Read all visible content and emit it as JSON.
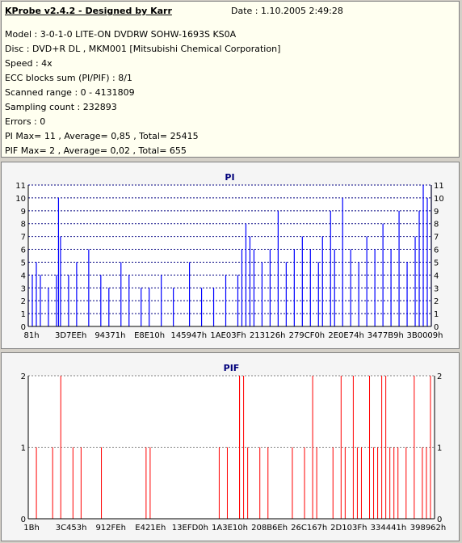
{
  "info": {
    "title": "KProbe v2.4.2 - Designed by Karr",
    "date": "Date : 1.10.2005 2:49:28",
    "lines": [
      "Model : 3-0-1-0 LITE-ON DVDRW SOHW-1693S KS0A",
      "Disc : DVD+R DL , MKM001 [Mitsubishi Chemical Corporation]",
      "Speed : 4x",
      "ECC blocks sum (PI/PIF) : 8/1",
      "Scanned range : 0 - 4131809",
      "Sampling count : 232893",
      "Errors : 0",
      "PI Max= 11 , Average= 0,85 , Total= 25415",
      "PIF Max= 2 , Average= 0,02 , Total= 655"
    ]
  },
  "chart_data": [
    {
      "type": "bar",
      "title": "PI",
      "ylim": [
        0,
        11
      ],
      "yticks": [
        0,
        1,
        2,
        3,
        4,
        5,
        6,
        7,
        8,
        9,
        10,
        11
      ],
      "xtick_labels": [
        "81h",
        "3D7EEh",
        "94371h",
        "E8E10h",
        "145947h",
        "1AE03Fh",
        "213126h",
        "279CF0h",
        "2E0E74h",
        "3477B9h",
        "3B0009h"
      ],
      "grid": true,
      "colors": {
        "bars": "#0000ff",
        "grid": "#000080",
        "background": "#ffffff"
      },
      "series": [
        {
          "x_positions": [
            0.0,
            0.01,
            0.02,
            0.03,
            0.05,
            0.07,
            0.075,
            0.08,
            0.1,
            0.12,
            0.15,
            0.18,
            0.2,
            0.23,
            0.25,
            0.28,
            0.3,
            0.33,
            0.36,
            0.4,
            0.43,
            0.46,
            0.49,
            0.52,
            0.53,
            0.54,
            0.55,
            0.56,
            0.58,
            0.6,
            0.62,
            0.64,
            0.66,
            0.68,
            0.7,
            0.72,
            0.73,
            0.75,
            0.76,
            0.78,
            0.8,
            0.82,
            0.84,
            0.86,
            0.88,
            0.9,
            0.92,
            0.94,
            0.96,
            0.97,
            0.98,
            0.99,
            1.0
          ],
          "values": [
            6,
            4,
            5,
            4,
            3,
            4,
            10,
            7,
            4,
            5,
            6,
            4,
            3,
            5,
            4,
            3,
            3,
            4,
            3,
            5,
            3,
            3,
            4,
            4,
            6,
            8,
            7,
            6,
            5,
            6,
            9,
            5,
            6,
            7,
            6,
            5,
            7,
            9,
            6,
            10,
            6,
            5,
            7,
            6,
            8,
            6,
            9,
            5,
            7,
            9,
            11,
            10,
            11
          ]
        }
      ]
    },
    {
      "type": "bar",
      "title": "PIF",
      "ylim": [
        0,
        2
      ],
      "yticks": [
        0,
        1,
        2
      ],
      "xtick_labels": [
        "1Bh",
        "3C453h",
        "912FEh",
        "E421Eh",
        "13EFD0h",
        "1A3E10h",
        "208B6Eh",
        "26C167h",
        "2D103Fh",
        "334441h",
        "398962h"
      ],
      "grid": true,
      "colors": {
        "bars": "#ff0000",
        "grid": "#808080",
        "background": "#ffffff"
      },
      "series": [
        {
          "x_positions": [
            0.02,
            0.06,
            0.08,
            0.11,
            0.13,
            0.18,
            0.29,
            0.3,
            0.47,
            0.49,
            0.52,
            0.52,
            0.53,
            0.54,
            0.57,
            0.59,
            0.65,
            0.68,
            0.7,
            0.71,
            0.75,
            0.77,
            0.78,
            0.8,
            0.81,
            0.82,
            0.84,
            0.85,
            0.86,
            0.87,
            0.88,
            0.89,
            0.9,
            0.91,
            0.93,
            0.95,
            0.97,
            0.98,
            0.99
          ],
          "values": [
            1,
            1,
            2,
            1,
            1,
            1,
            1,
            1,
            1,
            1,
            2,
            2,
            2,
            1,
            1,
            1,
            1,
            1,
            2,
            1,
            1,
            2,
            1,
            2,
            1,
            1,
            2,
            1,
            1,
            2,
            2,
            1,
            1,
            1,
            1,
            2,
            1,
            1,
            2
          ]
        }
      ]
    }
  ]
}
